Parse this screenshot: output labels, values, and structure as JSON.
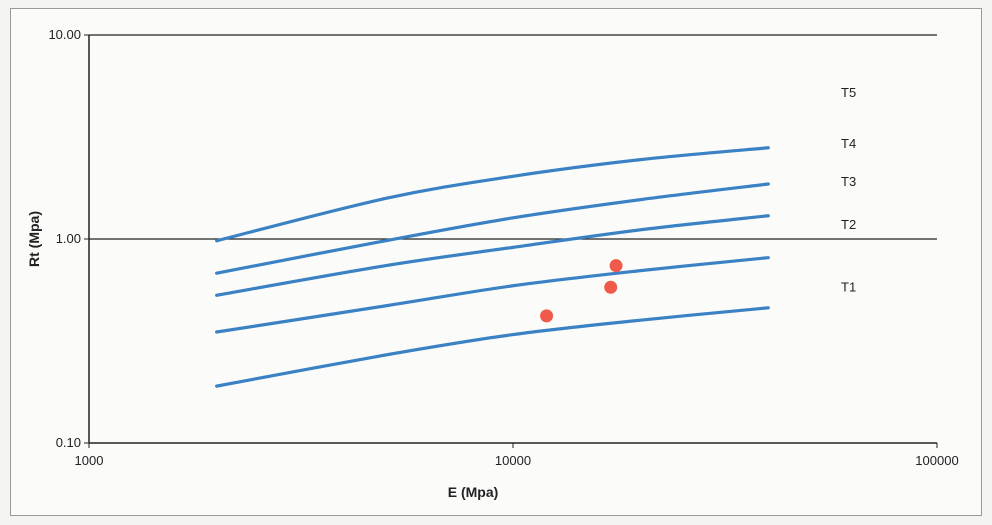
{
  "chart_data": {
    "type": "line",
    "xlabel": "E (Mpa)",
    "ylabel": "Rt (Mpa)",
    "x_scale": "log",
    "y_scale": "log",
    "xlim": [
      1000,
      100000
    ],
    "ylim": [
      0.1,
      10.0
    ],
    "x_ticks": [
      "1000",
      "10000",
      "100000"
    ],
    "y_ticks": [
      "0.10",
      "1.00",
      "10.00"
    ],
    "gridlines_y": [
      1.0,
      10.0
    ],
    "curve_color": "#3a82c4",
    "point_color": "#f05a4a",
    "curves": [
      {
        "x": [
          2000,
          5000,
          10000,
          20000,
          40000
        ],
        "y": [
          0.19,
          0.27,
          0.34,
          0.4,
          0.46
        ]
      },
      {
        "x": [
          2000,
          5000,
          10000,
          20000,
          40000
        ],
        "y": [
          0.35,
          0.47,
          0.59,
          0.7,
          0.81
        ]
      },
      {
        "x": [
          2000,
          5000,
          10000,
          20000,
          40000
        ],
        "y": [
          0.53,
          0.74,
          0.91,
          1.11,
          1.3
        ]
      },
      {
        "x": [
          2000,
          5000,
          10000,
          20000,
          40000
        ],
        "y": [
          0.68,
          0.98,
          1.27,
          1.56,
          1.86
        ]
      },
      {
        "x": [
          2000,
          5000,
          10000,
          20000,
          40000
        ],
        "y": [
          0.98,
          1.58,
          2.03,
          2.45,
          2.8
        ]
      }
    ],
    "curve_labels": [
      {
        "text": "T1",
        "y": 0.58
      },
      {
        "text": "T2",
        "y": 1.17
      },
      {
        "text": "T3",
        "y": 1.9
      },
      {
        "text": "T4",
        "y": 2.92
      },
      {
        "text": "T5",
        "y": 5.2
      }
    ],
    "points": [
      {
        "x": 12000,
        "y": 0.42
      },
      {
        "x": 17000,
        "y": 0.58
      },
      {
        "x": 17500,
        "y": 0.74
      }
    ]
  }
}
